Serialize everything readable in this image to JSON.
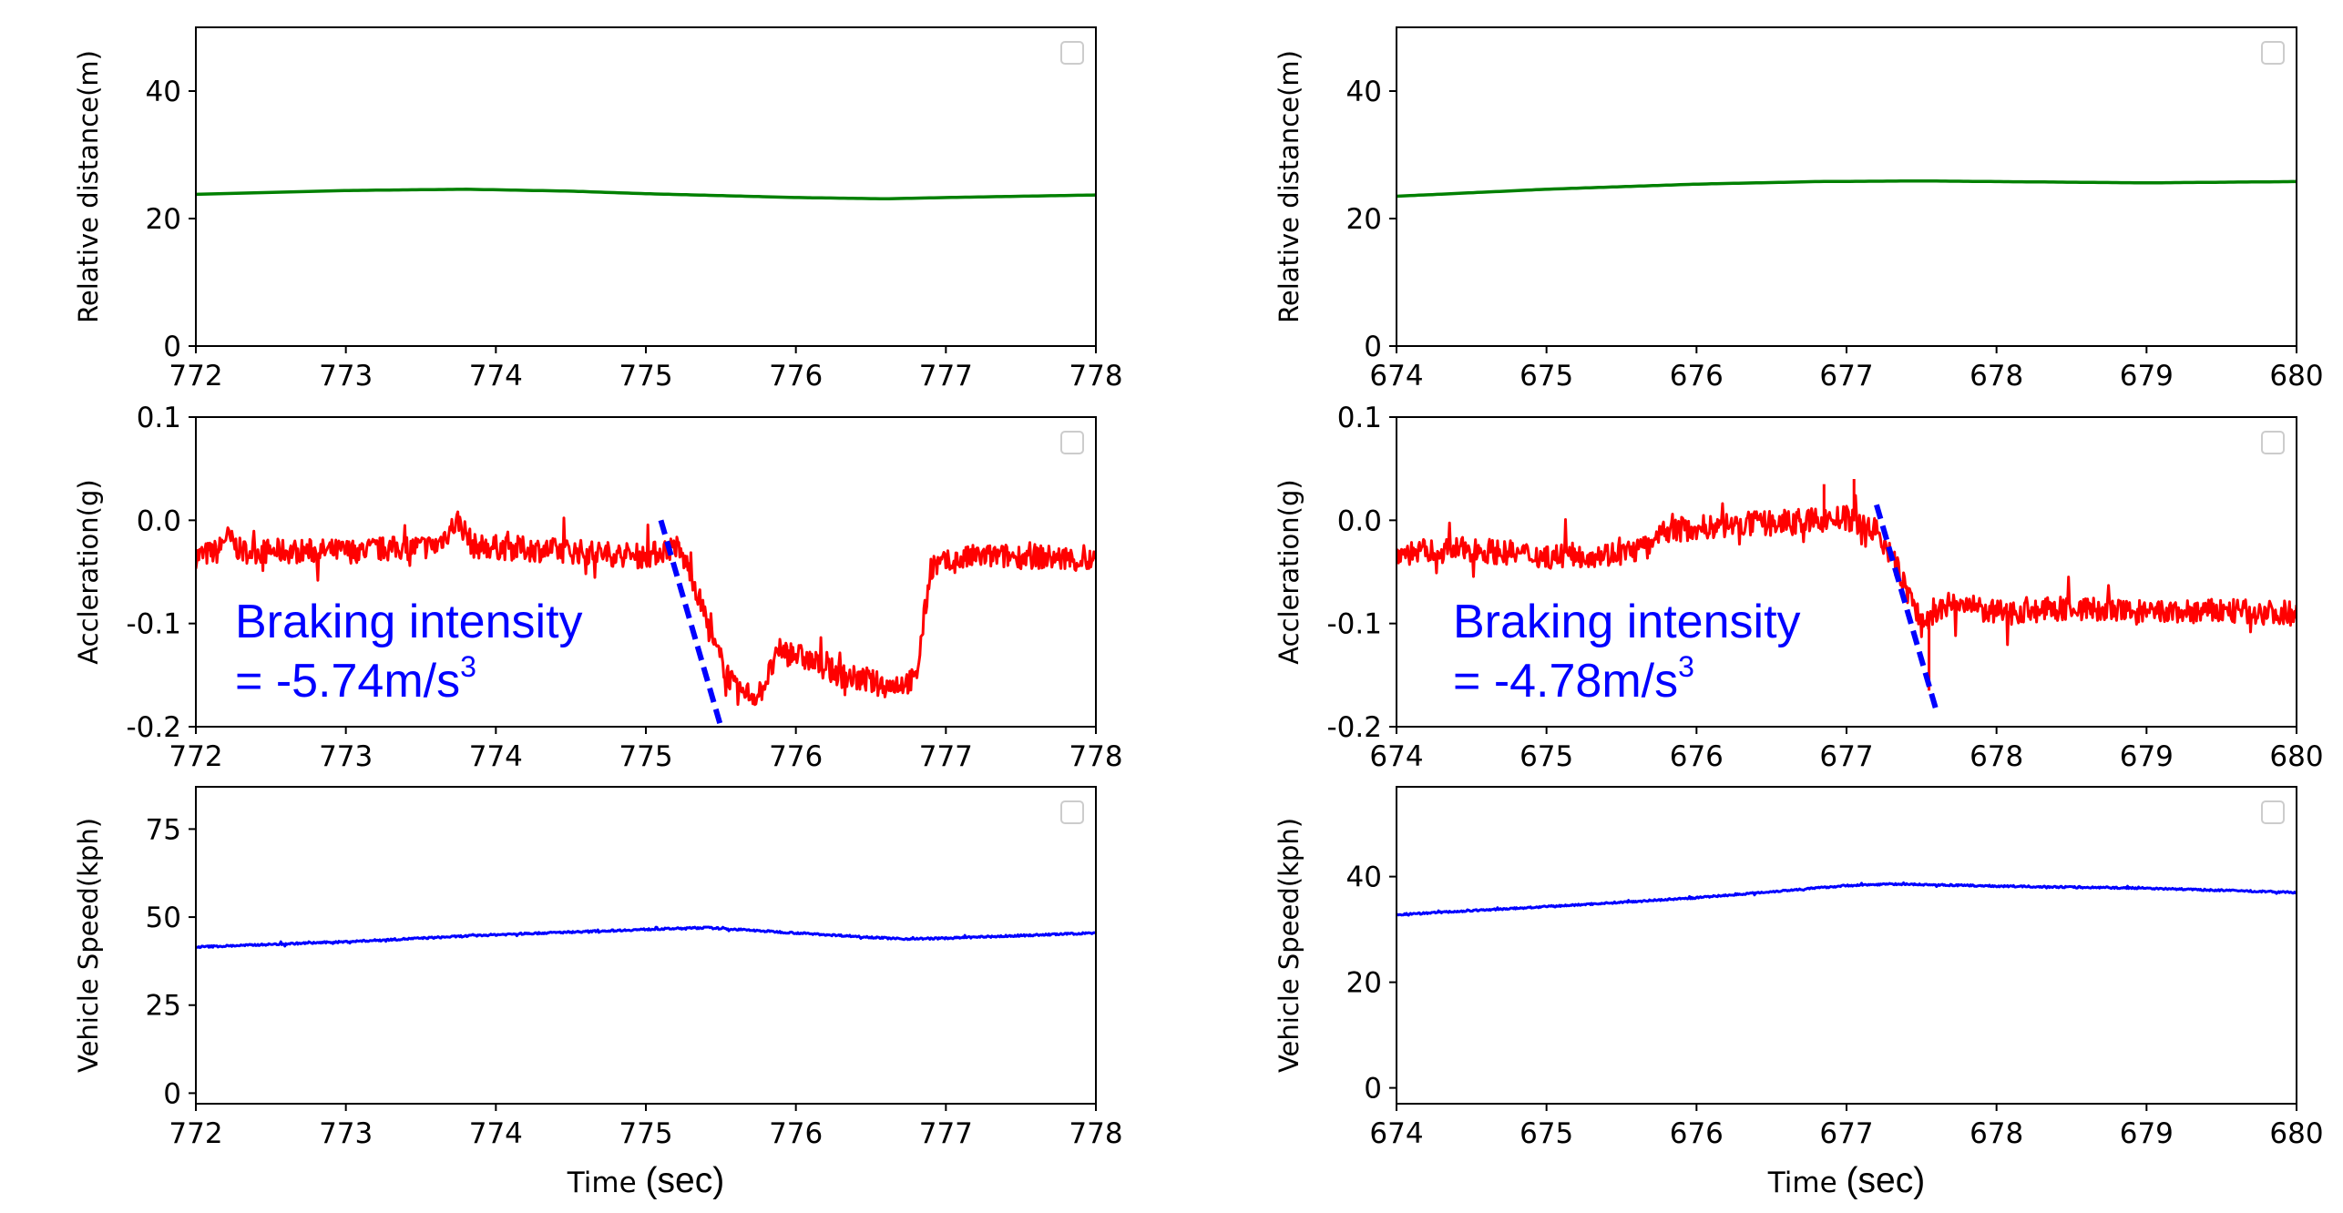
{
  "chart_data": [
    {
      "panel": "left-top",
      "type": "line",
      "xlabel": "",
      "ylabel": "Relative distance(m)",
      "xlim": [
        772,
        778
      ],
      "ylim": [
        0,
        50
      ],
      "xticks": [
        "772",
        "773",
        "774",
        "775",
        "776",
        "777",
        "778"
      ],
      "yticks": [
        "0",
        "20",
        "40"
      ],
      "series": [
        {
          "name": "relative distance",
          "color": "#008000",
          "noise": 0,
          "x": [
            772,
            773,
            773.8,
            774.5,
            775,
            775.5,
            776,
            776.6,
            777,
            777.5,
            778
          ],
          "values": [
            23.8,
            24.4,
            24.6,
            24.3,
            23.9,
            23.6,
            23.3,
            23.1,
            23.3,
            23.5,
            23.7
          ]
        }
      ]
    },
    {
      "panel": "left-mid",
      "type": "line",
      "xlabel": "",
      "ylabel": "Accleration(g)",
      "xlim": [
        772,
        778
      ],
      "ylim": [
        -0.2,
        0.1
      ],
      "xticks": [
        "772",
        "773",
        "774",
        "775",
        "776",
        "777",
        "778"
      ],
      "yticks": [
        "-0.2",
        "-0.1",
        "0.0",
        "0.1"
      ],
      "series": [
        {
          "name": "acceleration",
          "color": "#ff0000",
          "noise": 0.012,
          "x": [
            772,
            772.15,
            772.2,
            772.3,
            773,
            773.6,
            773.75,
            773.85,
            774.5,
            775,
            775.2,
            775.3,
            775.45,
            775.6,
            775.75,
            775.9,
            776,
            776.3,
            776.6,
            776.8,
            776.9,
            777.2,
            777.6,
            778
          ],
          "values": [
            -0.035,
            -0.03,
            -0.015,
            -0.03,
            -0.03,
            -0.025,
            0.0,
            -0.025,
            -0.03,
            -0.035,
            -0.025,
            -0.05,
            -0.12,
            -0.165,
            -0.17,
            -0.125,
            -0.13,
            -0.15,
            -0.16,
            -0.155,
            -0.045,
            -0.035,
            -0.035,
            -0.04
          ]
        }
      ],
      "fit_line": {
        "x": [
          775.1,
          775.5
        ],
        "values": [
          0.0,
          -0.2
        ],
        "color": "#0000ff",
        "style": "dashed"
      },
      "annotation": {
        "line1": "Braking intensity",
        "line2": "= -5.74m/s",
        "sup": "3",
        "color": "#0000ff"
      }
    },
    {
      "panel": "left-bottom",
      "type": "line",
      "xlabel": "Time",
      "xlabel_unit": "(sec)",
      "ylabel": "Vehicle Speed(kph)",
      "xlim": [
        772,
        778
      ],
      "ylim": [
        -3,
        87
      ],
      "xticks": [
        "772",
        "773",
        "774",
        "775",
        "776",
        "777",
        "778"
      ],
      "yticks": [
        "0",
        "25",
        "50",
        "75"
      ],
      "series": [
        {
          "name": "vehicle speed",
          "color": "#0000ff",
          "noise": 0.25,
          "x": [
            772,
            773,
            774,
            775,
            775.4,
            776,
            776.7,
            777,
            778
          ],
          "values": [
            41.5,
            43,
            45,
            46.5,
            47,
            45.5,
            43.8,
            44,
            45.5
          ]
        }
      ]
    },
    {
      "panel": "right-top",
      "type": "line",
      "xlabel": "",
      "ylabel": "Relative distance(m)",
      "xlim": [
        674,
        680
      ],
      "ylim": [
        0,
        50
      ],
      "xticks": [
        "674",
        "675",
        "676",
        "677",
        "678",
        "679",
        "680"
      ],
      "yticks": [
        "0",
        "20",
        "40"
      ],
      "series": [
        {
          "name": "relative distance",
          "color": "#008000",
          "noise": 0,
          "x": [
            674,
            675,
            676,
            676.8,
            677.5,
            678,
            679,
            680
          ],
          "values": [
            23.5,
            24.6,
            25.4,
            25.8,
            25.9,
            25.8,
            25.6,
            25.8
          ]
        }
      ]
    },
    {
      "panel": "right-mid",
      "type": "line",
      "xlabel": "",
      "ylabel": "Accleration(g)",
      "xlim": [
        674,
        680
      ],
      "ylim": [
        -0.2,
        0.1
      ],
      "xticks": [
        "674",
        "675",
        "676",
        "677",
        "678",
        "679",
        "680"
      ],
      "yticks": [
        "-0.2",
        "-0.1",
        "0.0",
        "0.1"
      ],
      "series": [
        {
          "name": "acceleration",
          "color": "#ff0000",
          "noise": 0.012,
          "x": [
            674,
            674.5,
            675,
            675.5,
            675.7,
            675.8,
            676.2,
            676.6,
            677,
            677.2,
            677.35,
            677.5,
            677.7,
            678,
            678.5,
            679,
            679.5,
            680
          ],
          "values": [
            -0.032,
            -0.028,
            -0.035,
            -0.032,
            -0.025,
            -0.01,
            -0.005,
            -0.002,
            0.002,
            -0.01,
            -0.05,
            -0.1,
            -0.08,
            -0.09,
            -0.085,
            -0.09,
            -0.088,
            -0.09
          ]
        }
      ],
      "spikes": [
        {
          "x": 677.55,
          "value": -0.165
        },
        {
          "x": 676.85,
          "value": 0.035
        },
        {
          "x": 677.05,
          "value": 0.04
        }
      ],
      "fit_line": {
        "x": [
          677.2,
          677.6
        ],
        "values": [
          0.015,
          -0.185
        ],
        "color": "#0000ff",
        "style": "dashed"
      },
      "annotation": {
        "line1": "Braking intensity",
        "line2": "= -4.78m/s",
        "sup": "3",
        "color": "#0000ff"
      }
    },
    {
      "panel": "right-bottom",
      "type": "line",
      "xlabel": "Time",
      "xlabel_unit": "(sec)",
      "ylabel": "Vehicle Speed(kph)",
      "xlim": [
        674,
        680
      ],
      "ylim": [
        -3,
        57
      ],
      "xticks": [
        "674",
        "675",
        "676",
        "677",
        "678",
        "679",
        "680"
      ],
      "yticks": [
        "0",
        "20",
        "40"
      ],
      "series": [
        {
          "name": "vehicle speed",
          "color": "#0000ff",
          "noise": 0.15,
          "x": [
            674,
            675,
            676,
            677,
            677.3,
            678,
            679,
            680
          ],
          "values": [
            32.8,
            34.3,
            36,
            38.3,
            38.6,
            38.2,
            37.8,
            37
          ]
        }
      ]
    }
  ]
}
